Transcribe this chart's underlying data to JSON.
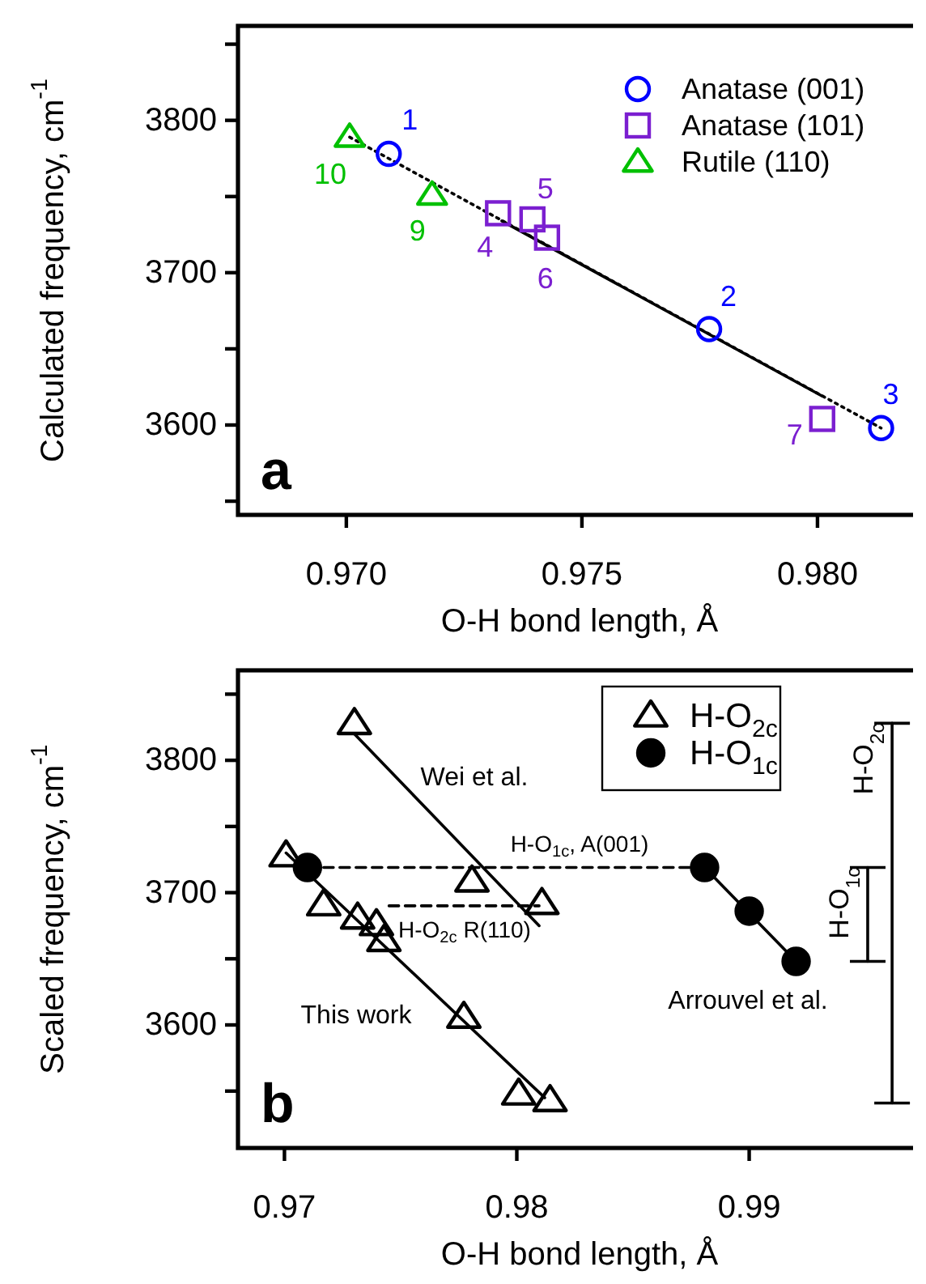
{
  "chart_data": [
    {
      "type": "scatter",
      "xlabel": "O-H bond length, Å",
      "ylabel": "Calculated frequency, cm$^{-1}$",
      "xlim": [
        0.9677,
        0.9822
      ],
      "ylim": [
        3541,
        3862
      ],
      "xticks": [
        {
          "value": 0.97,
          "label": "0.970"
        },
        {
          "value": 0.975,
          "label": "0.975"
        },
        {
          "value": 0.98,
          "label": "0.980"
        }
      ],
      "yticks": [
        {
          "value": 3550,
          "label": null
        },
        3600,
        {
          "value": 3650,
          "label": null
        },
        3700,
        {
          "value": 3750,
          "label": null
        },
        3800,
        {
          "value": 3850,
          "label": null
        }
      ],
      "legend": "top right",
      "series": [
        {
          "type": "line",
          "line_style": "dotted",
          "color": "#000000",
          "x": [
            0.97007,
            0.98135
          ],
          "values": [
            3789,
            3598
          ]
        },
        {
          "type": "line",
          "line_style": "solid",
          "color": "#000000",
          "x": [
            0.9733,
            0.9801
          ],
          "values": [
            3734,
            3619
          ]
        },
        {
          "name": "Anatase (001)",
          "color": "#0000ff",
          "marker": "circle",
          "x": [
            0.9709,
            0.9777,
            0.98135
          ],
          "values": [
            3778,
            3663,
            3598
          ]
        },
        {
          "name": "Anatase (101)",
          "color": "#7b1fd0",
          "marker": "square",
          "x": [
            0.97322,
            0.97395,
            0.97426,
            0.9801
          ],
          "values": [
            3739,
            3735,
            3723,
            3604
          ]
        },
        {
          "name": "Rutile (110)",
          "color": "#00c000",
          "marker": "triangle",
          "x": [
            0.97007,
            0.97182
          ],
          "values": [
            3789,
            3751
          ]
        }
      ],
      "annotations": [
        {
          "text": "1",
          "x": 0.9709,
          "y": 3778
        },
        {
          "text": "2",
          "x": 0.9777,
          "y": 3663
        },
        {
          "text": "3",
          "x": 0.98135,
          "y": 3598
        },
        {
          "text": "4",
          "x": 0.97322,
          "y": 3739
        },
        {
          "text": "5",
          "x": 0.97395,
          "y": 3735
        },
        {
          "text": "6",
          "x": 0.97426,
          "y": 3723
        },
        {
          "text": "7",
          "x": 0.9801,
          "y": 3604
        },
        {
          "text": "9",
          "x": 0.97182,
          "y": 3751
        },
        {
          "text": "10",
          "x": 0.97007,
          "y": 3789
        },
        "a"
      ]
    },
    {
      "type": "scatter",
      "xlabel": "O-H bond length, Å",
      "ylabel": "Scaled frequency, cm$^{-1}$",
      "xlim": [
        0.968,
        0.9974
      ],
      "ylim": [
        3507,
        3868
      ],
      "xticks": [
        0.97,
        0.98,
        0.99
      ],
      "yticks": [
        {
          "value": 3550,
          "label": null
        },
        3600,
        {
          "value": 3650,
          "label": null
        },
        3700,
        {
          "value": 3750,
          "label": null
        },
        3800,
        {
          "value": 3850,
          "label": null
        }
      ],
      "legend": "top",
      "series": [
        {
          "type": "line",
          "line_style": "solid",
          "color": "#000000",
          "x": [
            0.97007,
            0.9812
          ],
          "values": [
            3730,
            3545
          ]
        },
        {
          "type": "line",
          "line_style": "solid",
          "color": "#000000",
          "x": [
            0.97301,
            0.98096
          ],
          "values": [
            3820,
            3675
          ]
        },
        {
          "type": "line",
          "line_style": "solid",
          "color": "#000000",
          "x": [
            0.98808,
            0.99202
          ],
          "values": [
            3719,
            3648
          ]
        },
        {
          "type": "line",
          "line_style": "dashed",
          "color": "#000000",
          "x": [
            0.97099,
            0.98808
          ],
          "values": [
            3719,
            3719
          ]
        },
        {
          "type": "line",
          "line_style": "dashed",
          "color": "#000000",
          "x": [
            0.9745,
            0.98096
          ],
          "values": [
            3690,
            3690
          ]
        },
        {
          "type": "line",
          "name": "H-O$_{2c}$",
          "line_style": "solid",
          "color": "#000000",
          "x": [
            0.99615,
            0.99615
          ],
          "values": [
            3828,
            3541
          ]
        },
        {
          "type": "line",
          "name": "H-O$_{1c}$",
          "line_style": "solid",
          "color": "#000000",
          "x": [
            0.9951,
            0.9951
          ],
          "values": [
            3719,
            3648
          ]
        },
        {
          "name": "H-O$_{2c}$",
          "color": "#000000",
          "marker": "triangle",
          "x": [
            0.97007,
            0.97169,
            0.97315,
            0.97396,
            0.97428,
            0.97772,
            0.98008,
            0.98143
          ],
          "values": [
            3728,
            3691,
            3681,
            3676,
            3664,
            3606,
            3548,
            3543
          ]
        },
        {
          "color": "#000000",
          "marker": "triangle",
          "x": [
            0.97301,
            0.97807,
            0.98108
          ],
          "values": [
            3828,
            3709,
            3692
          ]
        },
        {
          "name": "H-O$_{1c}$",
          "color": "#000000",
          "marker": "circle",
          "x": [
            0.97099,
            0.98808,
            0.99,
            0.99202
          ],
          "values": [
            3719,
            3719,
            3686,
            3648
          ]
        }
      ],
      "annotations": [
        "Wei et al.",
        "This work",
        "Arrouvel et al.",
        "H-O$_{1c}$, A(001)",
        "H-O$_{2c}$ R(110)",
        "b"
      ]
    }
  ]
}
